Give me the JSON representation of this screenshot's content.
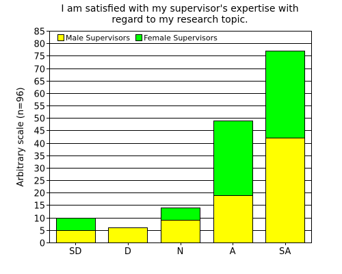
{
  "chart_data": {
    "type": "bar",
    "stacked": true,
    "title_lines": [
      "I am satisfied with my supervisor's expertise with",
      "regard to my research topic."
    ],
    "xlabel": "",
    "ylabel": "Arbitrary scale (n=96)",
    "categories": [
      "SD",
      "D",
      "N",
      "A",
      "SA"
    ],
    "series": [
      {
        "name": "Male Supervisors",
        "color": "#ffff00",
        "values": [
          5,
          6,
          9,
          19,
          42
        ]
      },
      {
        "name": "Female Supervisors",
        "color": "#00ff00",
        "values": [
          5,
          0,
          5,
          30,
          35
        ]
      }
    ],
    "ylim": [
      0,
      85
    ],
    "yticks": [
      0,
      5,
      10,
      15,
      20,
      25,
      30,
      35,
      40,
      45,
      50,
      55,
      60,
      65,
      70,
      75,
      80,
      85
    ],
    "grid": "horizontal",
    "legend_position": "top-left"
  }
}
